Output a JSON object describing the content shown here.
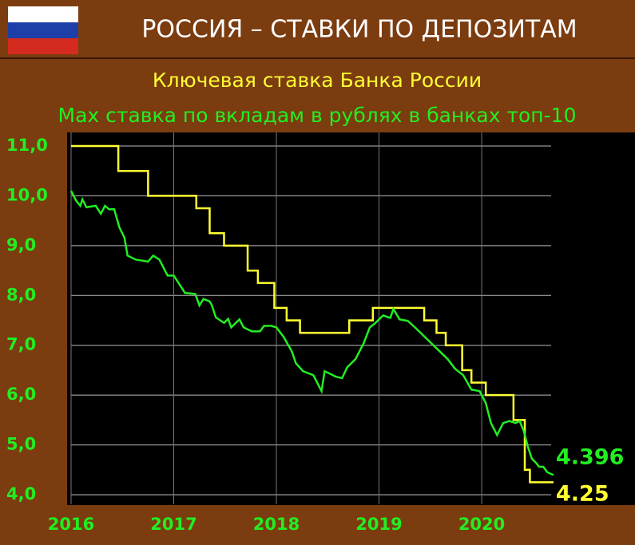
{
  "chart_data": {
    "type": "line",
    "title": "РОССИЯ – СТАВКИ ПО ДЕПОЗИТАМ",
    "xlim": [
      2016,
      2020.7
    ],
    "xticks": [
      2016,
      2017,
      2018,
      2019,
      2020
    ],
    "ylim": [
      4,
      11
    ],
    "yticks": [
      {
        "value": 4,
        "label": "4,0"
      },
      {
        "value": 5,
        "label": "5,0"
      },
      {
        "value": 6,
        "label": "6,0"
      },
      {
        "value": 7,
        "label": "7,0"
      },
      {
        "value": 8,
        "label": "8,0"
      },
      {
        "value": 9,
        "label": "9,0"
      },
      {
        "value": 10,
        "label": "10,0"
      },
      {
        "value": 11,
        "label": "11,0"
      }
    ],
    "grid": true,
    "series": [
      {
        "name": "Ключевая ставка Банка России",
        "color": "#ffff33",
        "end_label": "4.25",
        "x": [
          2016,
          2016.46,
          2016.46,
          2016.75,
          2016.75,
          2017.22,
          2017.22,
          2017.35,
          2017.35,
          2017.49,
          2017.49,
          2017.72,
          2017.72,
          2017.82,
          2017.82,
          2017.98,
          2017.98,
          2018.1,
          2018.1,
          2018.23,
          2018.23,
          2018.71,
          2018.71,
          2018.94,
          2018.94,
          2019.44,
          2019.44,
          2019.56,
          2019.56,
          2019.65,
          2019.65,
          2019.81,
          2019.81,
          2019.9,
          2019.9,
          2020.04,
          2020.04,
          2020.31,
          2020.31,
          2020.42,
          2020.42,
          2020.47,
          2020.47,
          2020.7
        ],
        "values": [
          11,
          11,
          10.5,
          10.5,
          10,
          10,
          9.75,
          9.75,
          9.25,
          9.25,
          9,
          9,
          8.5,
          8.5,
          8.25,
          8.25,
          7.75,
          7.75,
          7.5,
          7.5,
          7.25,
          7.25,
          7.5,
          7.5,
          7.75,
          7.75,
          7.5,
          7.5,
          7.25,
          7.25,
          7,
          7,
          6.5,
          6.5,
          6.25,
          6.25,
          6,
          6,
          5.5,
          5.5,
          4.5,
          4.5,
          4.25,
          4.25
        ]
      },
      {
        "name": "Max ставка по вкладам в рублях в банках топ-10",
        "color": "#22ee22",
        "end_label": "4.396",
        "x": [
          2016,
          2016.05,
          2016.09,
          2016.11,
          2016.15,
          2016.24,
          2016.29,
          2016.33,
          2016.37,
          2016.42,
          2016.47,
          2016.52,
          2016.55,
          2016.63,
          2016.75,
          2016.8,
          2016.86,
          2016.94,
          2017,
          2017.06,
          2017.11,
          2017.21,
          2017.25,
          2017.29,
          2017.35,
          2017.37,
          2017.41,
          2017.49,
          2017.53,
          2017.56,
          2017.64,
          2017.68,
          2017.76,
          2017.84,
          2017.88,
          2017.95,
          2018,
          2018.07,
          2018.15,
          2018.19,
          2018.26,
          2018.36,
          2018.44,
          2018.47,
          2018.58,
          2018.64,
          2018.69,
          2018.77,
          2018.85,
          2018.91,
          2018.96,
          2019.04,
          2019.11,
          2019.14,
          2019.2,
          2019.28,
          2019.35,
          2019.43,
          2019.51,
          2019.59,
          2019.67,
          2019.74,
          2019.82,
          2019.9,
          2019.98,
          2020.04,
          2020.09,
          2020.15,
          2020.21,
          2020.27,
          2020.33,
          2020.37,
          2020.41,
          2020.45,
          2020.49,
          2020.53,
          2020.56,
          2020.6,
          2020.64,
          2020.7
        ],
        "values": [
          10.1,
          9.9,
          9.8,
          9.93,
          9.77,
          9.8,
          9.64,
          9.8,
          9.73,
          9.73,
          9.37,
          9.16,
          8.8,
          8.72,
          8.68,
          8.8,
          8.72,
          8.4,
          8.4,
          8.21,
          8.05,
          8.03,
          7.8,
          7.93,
          7.88,
          7.81,
          7.56,
          7.45,
          7.53,
          7.36,
          7.52,
          7.36,
          7.28,
          7.28,
          7.39,
          7.39,
          7.36,
          7.17,
          6.88,
          6.64,
          6.48,
          6.4,
          6.08,
          6.48,
          6.37,
          6.34,
          6.56,
          6.72,
          7.04,
          7.36,
          7.44,
          7.6,
          7.55,
          7.73,
          7.52,
          7.49,
          7.36,
          7.2,
          7.04,
          6.88,
          6.72,
          6.53,
          6.4,
          6.11,
          6.08,
          5.84,
          5.44,
          5.2,
          5.44,
          5.48,
          5.44,
          5.48,
          5.28,
          4.96,
          4.72,
          4.64,
          4.56,
          4.56,
          4.45,
          4.396
        ]
      }
    ]
  }
}
